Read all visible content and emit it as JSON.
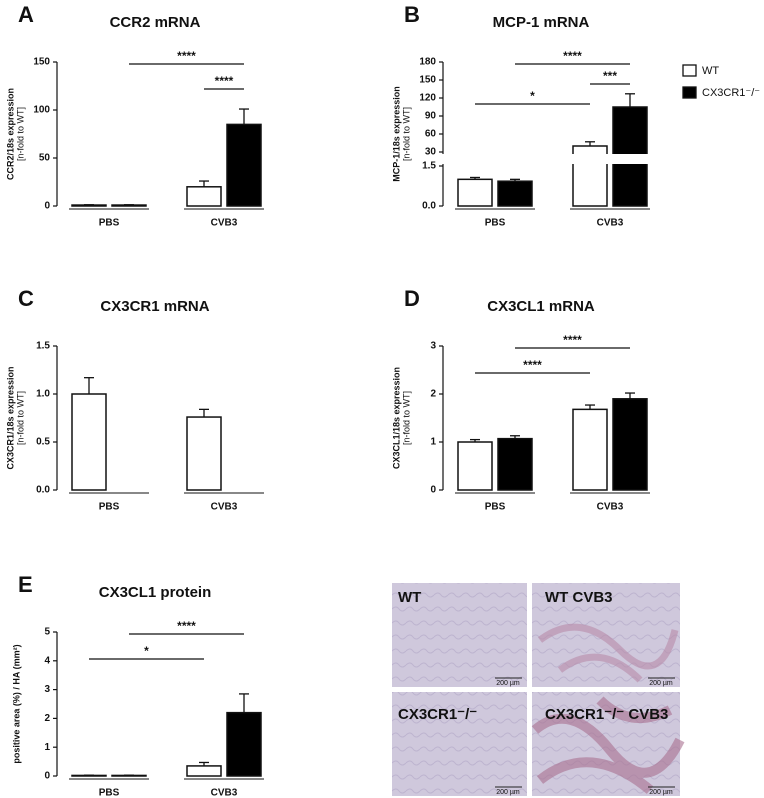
{
  "chart_data": [
    {
      "type": "bar",
      "panel": "A",
      "title": "CCR2 mRNA",
      "ylabel": "CCR2/18s expression",
      "ylabel_unit": "[n-fold to WT]",
      "categories": [
        "PBS",
        "CVB3"
      ],
      "series": [
        {
          "color": "#ffffff",
          "values": [
            1,
            20
          ],
          "errors": [
            0.3,
            6
          ]
        },
        {
          "color": "#000000",
          "values": [
            1,
            85
          ],
          "errors": [
            0.3,
            16
          ]
        }
      ],
      "ylim": [
        0,
        150
      ],
      "yticks": [
        0,
        50,
        100,
        150
      ],
      "annotations": [
        {
          "label": "****",
          "from": [
            0,
            1
          ],
          "to": [
            1,
            1
          ]
        },
        {
          "label": "****",
          "from": [
            1,
            0
          ],
          "to": [
            1,
            1
          ]
        }
      ]
    },
    {
      "type": "bar",
      "panel": "B",
      "title": "MCP-1 mRNA",
      "ylabel": "MCP-1/18s expression",
      "ylabel_unit": "[n-fold to WT]",
      "categories": [
        "PBS",
        "CVB3"
      ],
      "series": [
        {
          "color": "#ffffff",
          "values": [
            1.0,
            40
          ],
          "errors": [
            0.07,
            7
          ]
        },
        {
          "color": "#000000",
          "values": [
            0.93,
            105
          ],
          "errors": [
            0.07,
            22
          ]
        }
      ],
      "ylim": [
        0,
        180
      ],
      "axis_break": [
        1.5,
        30
      ],
      "yticks": [
        {
          "value": 0,
          "label": "0.0"
        },
        1.5,
        30,
        60,
        90,
        120,
        150,
        180
      ],
      "annotations": [
        {
          "label": "****",
          "from": [
            0,
            1
          ],
          "to": [
            1,
            1
          ]
        },
        {
          "label": "***",
          "from": [
            1,
            0
          ],
          "to": [
            1,
            1
          ]
        },
        {
          "label": "*",
          "from": [
            0,
            0
          ],
          "to": [
            1,
            0
          ]
        }
      ]
    },
    {
      "type": "bar",
      "panel": "C",
      "title": "CX3CR1 mRNA",
      "ylabel": "CX3CR1/18s expression",
      "ylabel_unit": "[n-fold to WT]",
      "categories": [
        "PBS",
        "CVB3"
      ],
      "series": [
        {
          "color": "#ffffff",
          "values": [
            1.0,
            0.76
          ],
          "errors": [
            0.17,
            0.08
          ]
        },
        {
          "color": "#000000",
          "values": [
            null,
            null
          ],
          "errors": [
            null,
            null
          ]
        }
      ],
      "ylim": [
        0,
        1.5
      ],
      "yticks": [
        {
          "value": 0,
          "label": "0.0"
        },
        0.5,
        {
          "value": 1,
          "label": "1.0"
        },
        1.5
      ],
      "annotations": []
    },
    {
      "type": "bar",
      "panel": "D",
      "title": "CX3CL1 mRNA",
      "ylabel": "CX3CL1/18s expression",
      "ylabel_unit": "[n-fold to WT]",
      "categories": [
        "PBS",
        "CVB3"
      ],
      "series": [
        {
          "color": "#ffffff",
          "values": [
            1.0,
            1.68
          ],
          "errors": [
            0.05,
            0.09
          ]
        },
        {
          "color": "#000000",
          "values": [
            1.07,
            1.9
          ],
          "errors": [
            0.06,
            0.12
          ]
        }
      ],
      "ylim": [
        0,
        3
      ],
      "yticks": [
        0,
        1,
        2,
        3
      ],
      "annotations": [
        {
          "label": "****",
          "from": [
            0,
            1
          ],
          "to": [
            1,
            1
          ]
        },
        {
          "label": "****",
          "from": [
            0,
            0
          ],
          "to": [
            1,
            0
          ]
        }
      ]
    },
    {
      "type": "bar",
      "panel": "E",
      "title": "CX3CL1 protein",
      "ylabel": "positive area (%) / HA (mm²)",
      "categories": [
        "PBS",
        "CVB3"
      ],
      "series": [
        {
          "color": "#ffffff",
          "values": [
            0.02,
            0.35
          ],
          "errors": [
            0.01,
            0.12
          ]
        },
        {
          "color": "#000000",
          "values": [
            0.02,
            2.2
          ],
          "errors": [
            0.01,
            0.65
          ]
        }
      ],
      "ylim": [
        0,
        5
      ],
      "yticks": [
        0,
        1,
        2,
        3,
        4,
        5
      ],
      "annotations": [
        {
          "label": "****",
          "from": [
            0,
            1
          ],
          "to": [
            1,
            1
          ]
        },
        {
          "label": "*",
          "from": [
            0,
            0
          ],
          "to": [
            1,
            0
          ]
        }
      ]
    }
  ],
  "legend": [
    {
      "name": "WT",
      "color": "#ffffff"
    },
    {
      "name": "CX3CR1⁻/⁻",
      "color": "#000000"
    }
  ],
  "micrographs": {
    "panels": [
      {
        "label": "WT"
      },
      {
        "label": "WT CVB3"
      },
      {
        "label": "CX3CR1⁻/⁻"
      },
      {
        "label": "CX3CR1⁻/⁻ CVB3"
      }
    ],
    "scale_bar": "200 µm"
  }
}
